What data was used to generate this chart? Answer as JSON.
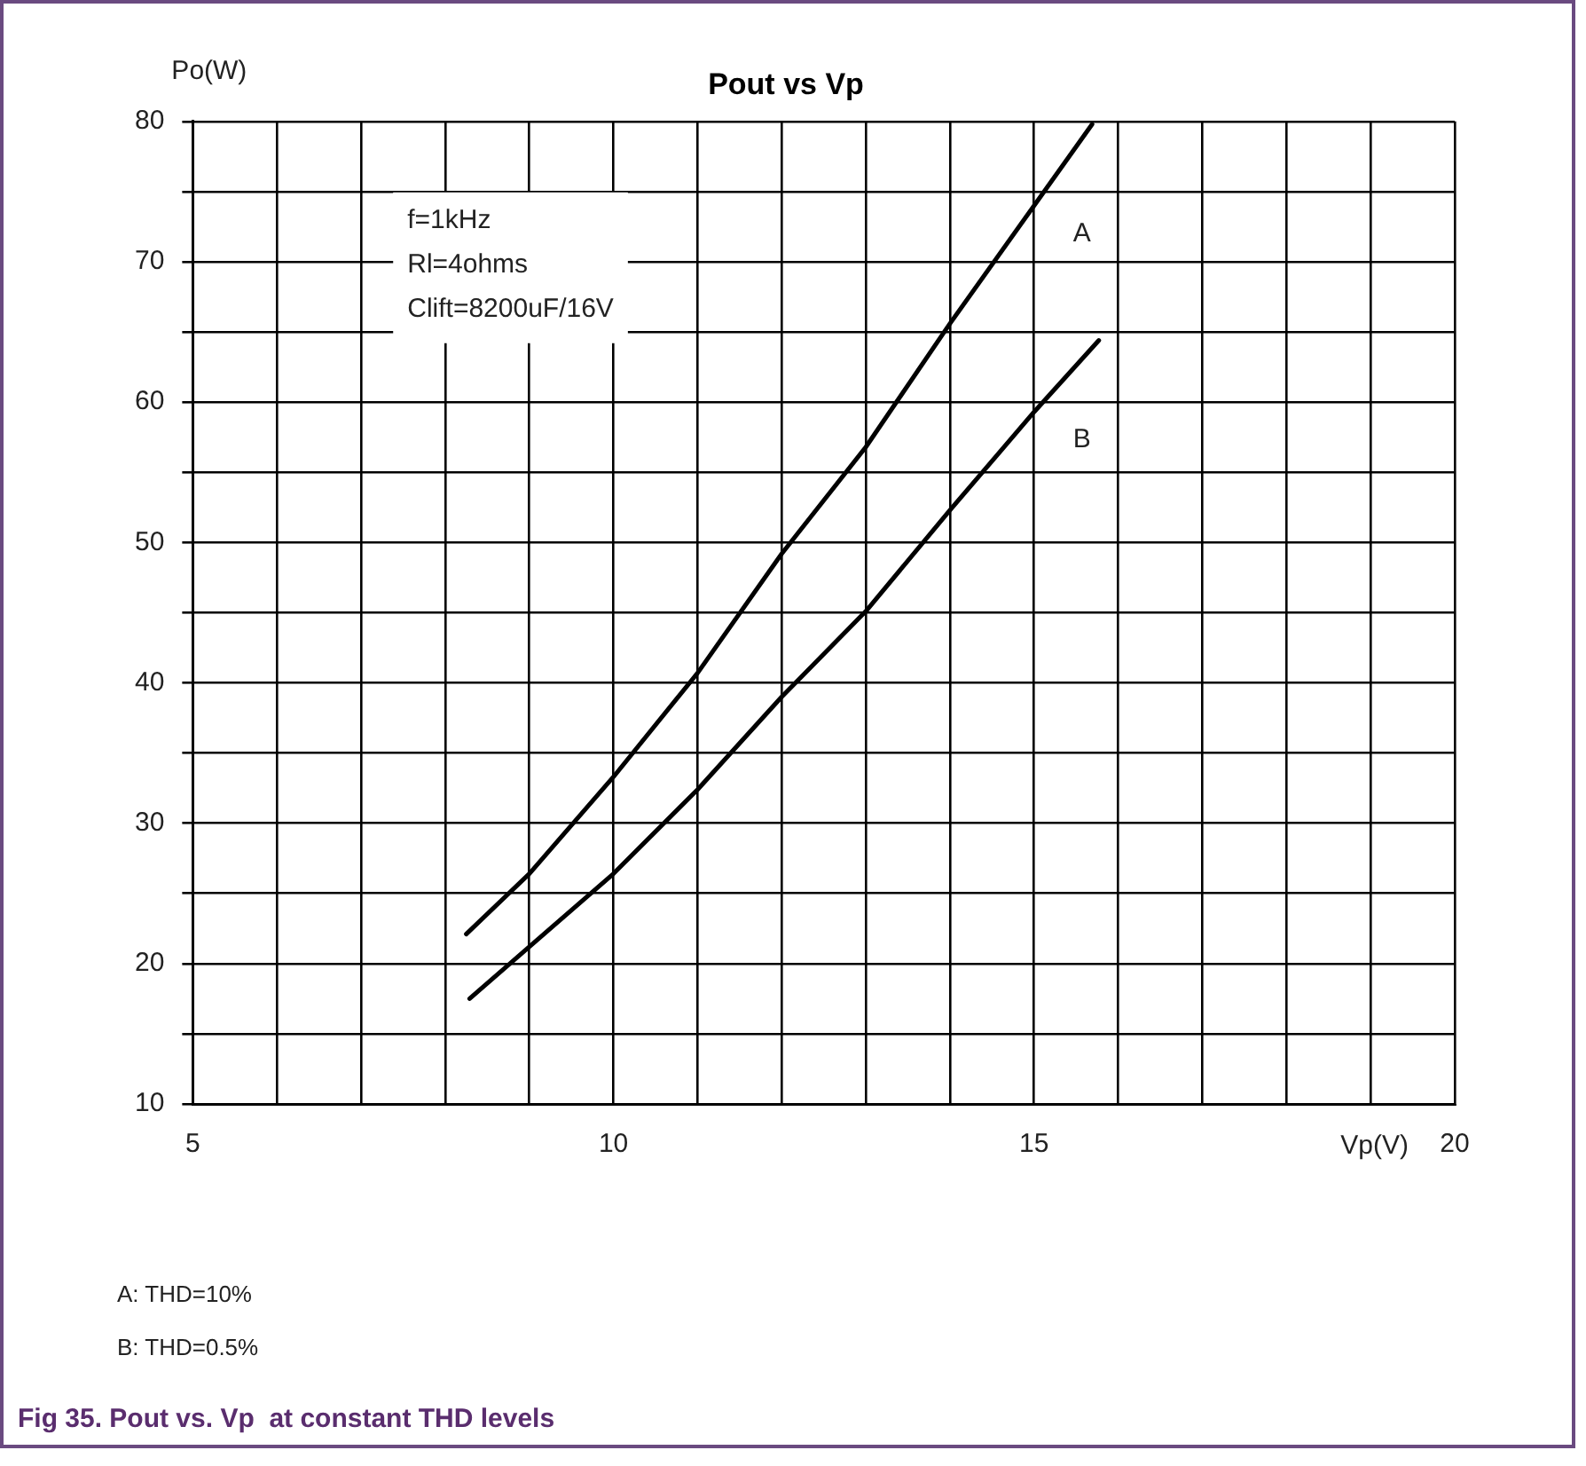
{
  "chart_data": {
    "type": "line",
    "title": "Pout vs Vp",
    "xlabel": "Vp(V)",
    "ylabel": "Po(W)",
    "xlim": [
      5,
      20
    ],
    "ylim": [
      10,
      80
    ],
    "xticks": [
      5,
      {
        "value": 6,
        "label": null
      },
      {
        "value": 7,
        "label": null
      },
      {
        "value": 8,
        "label": null
      },
      {
        "value": 9,
        "label": null
      },
      10,
      {
        "value": 11,
        "label": null
      },
      {
        "value": 12,
        "label": null
      },
      {
        "value": 13,
        "label": null
      },
      {
        "value": 14,
        "label": null
      },
      15,
      {
        "value": 16,
        "label": null
      },
      {
        "value": 17,
        "label": null
      },
      {
        "value": 18,
        "label": null
      },
      {
        "value": 19,
        "label": null
      },
      20
    ],
    "yticks": [
      10,
      {
        "value": 15,
        "label": null
      },
      20,
      {
        "value": 25,
        "label": null
      },
      30,
      {
        "value": 35,
        "label": null
      },
      40,
      {
        "value": 45,
        "label": null
      },
      50,
      {
        "value": 55,
        "label": null
      },
      60,
      {
        "value": 65,
        "label": null
      },
      70,
      {
        "value": 75,
        "label": null
      },
      80
    ],
    "grid": true,
    "marker": "none",
    "line_style": "solid",
    "legend": false,
    "series": [
      {
        "name": "A",
        "color": "#000000",
        "x": [
          8.25,
          9,
          10,
          11,
          12,
          13,
          14,
          15,
          15.69
        ],
        "values": [
          22.1,
          26.4,
          33.3,
          40.7,
          49.2,
          56.8,
          65.6,
          74.0,
          79.8
        ]
      },
      {
        "name": "B",
        "color": "#000000",
        "x": [
          8.29,
          9,
          10,
          11,
          12,
          13,
          14,
          15,
          15.77
        ],
        "values": [
          17.5,
          21.2,
          26.4,
          32.4,
          39.0,
          45.1,
          52.3,
          59.3,
          64.4
        ]
      }
    ],
    "annotations": [
      "f=1kHz\nRl=4ohms\nClift=8200uF/16V",
      "A: THD=10%",
      "B: THD=0.5%",
      "Fig 35. Pout vs. Vp  at constant THD levels"
    ]
  }
}
